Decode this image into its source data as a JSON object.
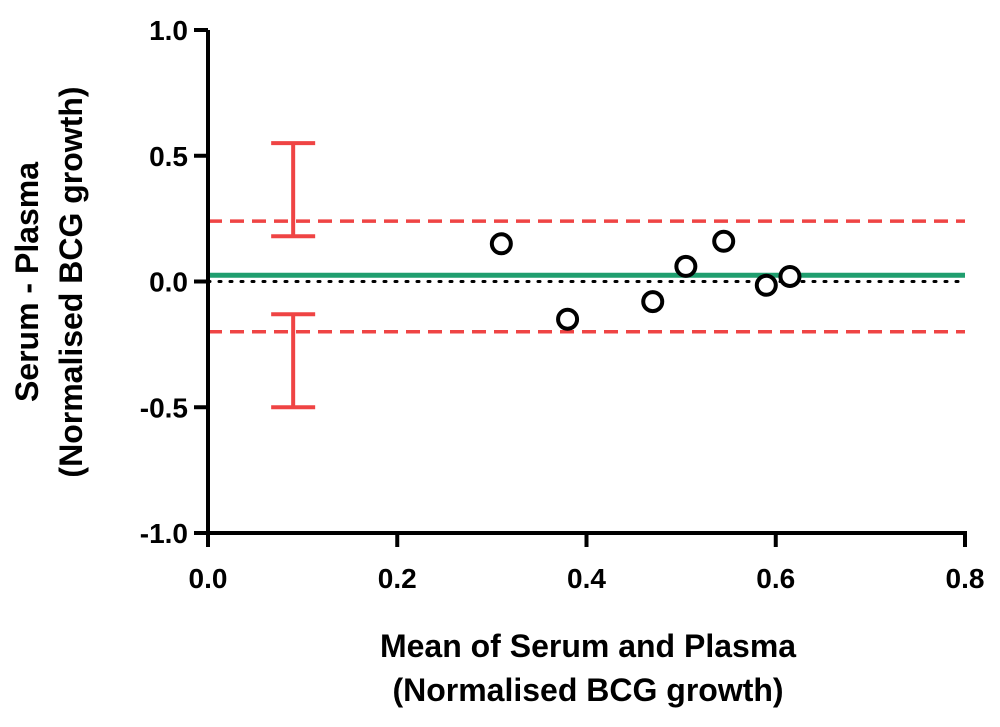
{
  "chart_data": {
    "type": "scatter",
    "title": "",
    "xlabel": [
      "Mean of Serum and Plasma",
      "(Normalised BCG growth)"
    ],
    "ylabel": [
      "Serum - Plasma",
      "(Normalised BCG growth)"
    ],
    "xlim": [
      0.0,
      0.8
    ],
    "ylim": [
      -1.0,
      1.0
    ],
    "x_ticks": [
      0.0,
      0.2,
      0.4,
      0.6,
      0.8
    ],
    "x_tick_labels": [
      "0.0",
      "0.2",
      "0.4",
      "0.6",
      "0.8"
    ],
    "y_ticks": [
      1.0,
      0.5,
      0.0,
      -0.5,
      -1.0
    ],
    "y_tick_labels": [
      "1.0",
      "0.5",
      "0.0",
      "-0.5",
      "-1.0"
    ],
    "grid": false,
    "legend": "none",
    "points": [
      {
        "x": 0.31,
        "y": 0.15
      },
      {
        "x": 0.38,
        "y": -0.15
      },
      {
        "x": 0.47,
        "y": -0.08
      },
      {
        "x": 0.505,
        "y": 0.06
      },
      {
        "x": 0.545,
        "y": 0.16
      },
      {
        "x": 0.59,
        "y": -0.015
      },
      {
        "x": 0.615,
        "y": 0.02
      }
    ],
    "bias": 0.025,
    "upper_loa": 0.24,
    "lower_loa": -0.2,
    "zero_line": 0.0,
    "upper_loa_ci": {
      "x": 0.09,
      "low": 0.18,
      "high": 0.55
    },
    "lower_loa_ci": {
      "x": 0.09,
      "low": -0.5,
      "high": -0.13
    },
    "colors": {
      "points": "#000000",
      "bias_line": "#1f9e6e",
      "loa_line": "#ef4444",
      "ci_bars": "#ef4444",
      "zero_line": "#000000",
      "axes": "#000000"
    }
  }
}
